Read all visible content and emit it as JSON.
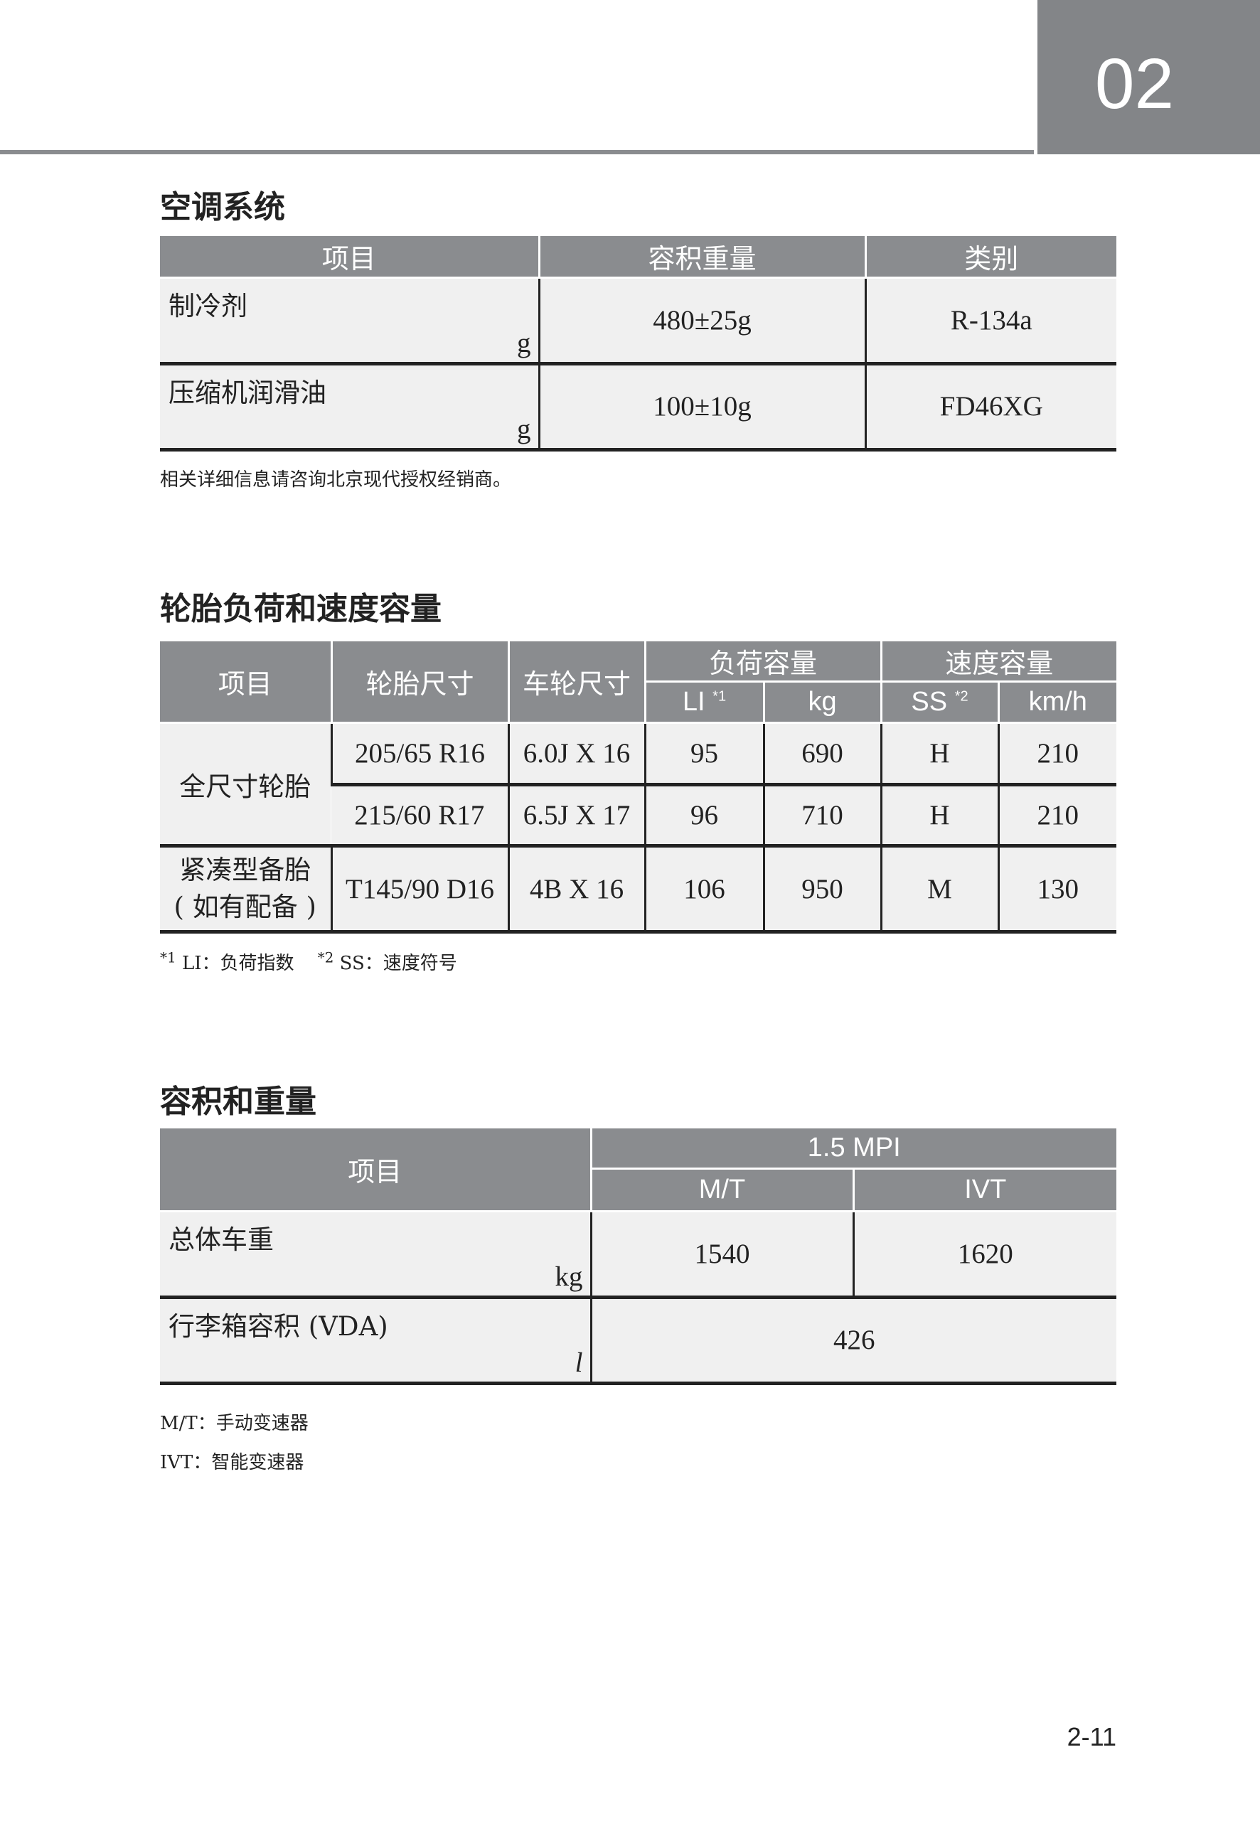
{
  "chapter_number": "02",
  "page_number": "2-11",
  "colors": {
    "header_gray": "#8a8c8f",
    "cell_bg": "#f0f0f0",
    "rule": "#222222"
  },
  "ac": {
    "title": "空调系统",
    "headers": [
      "项目",
      "容积重量",
      "类别"
    ],
    "rows": [
      {
        "item": "制冷剂",
        "unit": "g",
        "amount": "480±25g",
        "type": "R-134a"
      },
      {
        "item": "压缩机润滑油",
        "unit": "g",
        "amount": "100±10g",
        "type": "FD46XG"
      }
    ],
    "note": "相关详细信息请咨询北京现代授权经销商。"
  },
  "tires": {
    "title": "轮胎负荷和速度容量",
    "headers": {
      "item": "项目",
      "tire_size": "轮胎尺寸",
      "wheel_size": "车轮尺寸",
      "load": "负荷容量",
      "speed": "速度容量",
      "li": "LI",
      "li_mark": "*1",
      "kg": "kg",
      "ss": "SS",
      "ss_mark": "*2",
      "kmh": "km/h"
    },
    "groups": [
      {
        "label": "全尺寸轮胎",
        "rows": [
          {
            "tire": "205/65 R16",
            "wheel": "6.0J X 16",
            "li": "95",
            "kg": "690",
            "ss": "H",
            "kmh": "210"
          },
          {
            "tire": "215/60 R17",
            "wheel": "6.5J X 17",
            "li": "96",
            "kg": "710",
            "ss": "H",
            "kmh": "210"
          }
        ]
      },
      {
        "label": "紧凑型备胎",
        "label2": "( 如有配备 )",
        "rows": [
          {
            "tire": "T145/90 D16",
            "wheel": "4B X 16",
            "li": "106",
            "kg": "950",
            "ss": "M",
            "kmh": "130"
          }
        ]
      }
    ],
    "footnote1_mark": "*1",
    "footnote1": "LI：负荷指数",
    "footnote2_mark": "*2",
    "footnote2": "SS：速度符号"
  },
  "weights": {
    "title": "容积和重量",
    "headers": {
      "item": "项目",
      "engine": "1.5 MPI",
      "mt": "M/T",
      "ivt": "IVT"
    },
    "rows": [
      {
        "item": "总体车重",
        "unit": "kg",
        "mt": "1540",
        "ivt": "1620"
      },
      {
        "item": "行李箱容积 (VDA)",
        "unit": "l",
        "value": "426"
      }
    ],
    "notes": [
      "M/T：手动变速器",
      "IVT：智能变速器"
    ]
  }
}
